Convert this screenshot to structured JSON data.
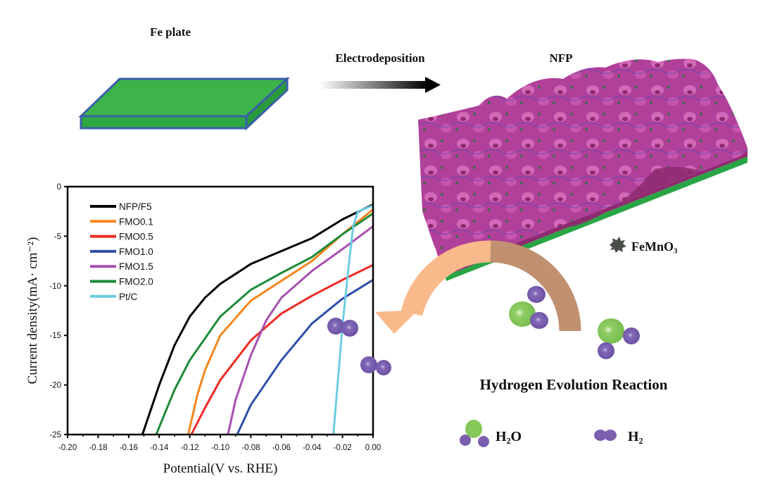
{
  "labels": {
    "fe_plate": "Fe plate",
    "electrodeposition": "Electrodeposition",
    "nfp": "NFP",
    "femno3": "FeMnO₃",
    "her": "Hydrogen Evolution Reaction",
    "h2o": "H₂O",
    "h2": "H₂"
  },
  "colors": {
    "plate_green": "#3cb44a",
    "plate_edge": "#3a5fa8",
    "nfp_magenta": "#b0409a",
    "nfp_dark": "#8e2a70",
    "arrow_orange": "#f9b98a",
    "arrow_brown": "#c09070",
    "oxygen_green": "#86c85a",
    "hydrogen_purple": "#7a5fae"
  },
  "chart_data": {
    "type": "line",
    "title": "",
    "xlabel": "Potential(V vs. RHE)",
    "ylabel": "Current density(mA· cm⁻²)",
    "xlim": [
      -0.2,
      0.0
    ],
    "ylim": [
      -25,
      0
    ],
    "xticks": [
      "-0.20",
      "-0.18",
      "-0.16",
      "-0.14",
      "-0.12",
      "-0.10",
      "-0.08",
      "-0.06",
      "-0.04",
      "-0.02",
      "0.00"
    ],
    "yticks": [
      "0",
      "-5",
      "-10",
      "-15",
      "-20",
      "-25"
    ],
    "grid": false,
    "legend_position": "top-left",
    "series": [
      {
        "name": "NFP/F5",
        "color": "#000000",
        "x": [
          0,
          -0.02,
          -0.04,
          -0.06,
          -0.08,
          -0.1,
          -0.11,
          -0.12,
          -0.13,
          -0.14,
          -0.151
        ],
        "y": [
          -1.8,
          -3.3,
          -5.2,
          -6.5,
          -7.8,
          -9.8,
          -11.2,
          -13.1,
          -16,
          -20,
          -25
        ]
      },
      {
        "name": "FMO0.1",
        "color": "#f7861e",
        "x": [
          0,
          -0.02,
          -0.04,
          -0.06,
          -0.08,
          -0.1,
          -0.11,
          -0.115,
          -0.121
        ],
        "y": [
          -2.3,
          -4.8,
          -7.5,
          -9.5,
          -11.5,
          -15,
          -18.5,
          -21,
          -25
        ]
      },
      {
        "name": "FMO0.5",
        "color": "#ee2a24",
        "x": [
          0,
          -0.02,
          -0.04,
          -0.06,
          -0.08,
          -0.1,
          -0.11,
          -0.119
        ],
        "y": [
          -7.9,
          -9.4,
          -11,
          -12.8,
          -15.5,
          -19.5,
          -22.3,
          -25
        ]
      },
      {
        "name": "FMO1.0",
        "color": "#2f4fa8",
        "x": [
          0,
          -0.02,
          -0.04,
          -0.06,
          -0.08,
          -0.089
        ],
        "y": [
          -9.4,
          -11.3,
          -13.8,
          -17.5,
          -22,
          -25
        ]
      },
      {
        "name": "FMO1.5",
        "color": "#a84fb0",
        "x": [
          0,
          -0.02,
          -0.04,
          -0.06,
          -0.07,
          -0.08,
          -0.09,
          -0.095
        ],
        "y": [
          -4,
          -6.3,
          -8.5,
          -11.2,
          -13.5,
          -17,
          -21.5,
          -25
        ]
      },
      {
        "name": "FMO2.0",
        "color": "#1f8a3a",
        "x": [
          0,
          -0.02,
          -0.04,
          -0.06,
          -0.08,
          -0.1,
          -0.12,
          -0.13,
          -0.142
        ],
        "y": [
          -2.7,
          -4.8,
          -7.1,
          -8.7,
          -10.4,
          -13.1,
          -17.5,
          -20.5,
          -25
        ]
      },
      {
        "name": "Pt/C",
        "color": "#6ccde0",
        "x": [
          0,
          -0.01,
          -0.013,
          -0.016,
          -0.02,
          -0.026
        ],
        "y": [
          -1.9,
          -2.5,
          -4,
          -8,
          -14,
          -25
        ]
      }
    ]
  }
}
